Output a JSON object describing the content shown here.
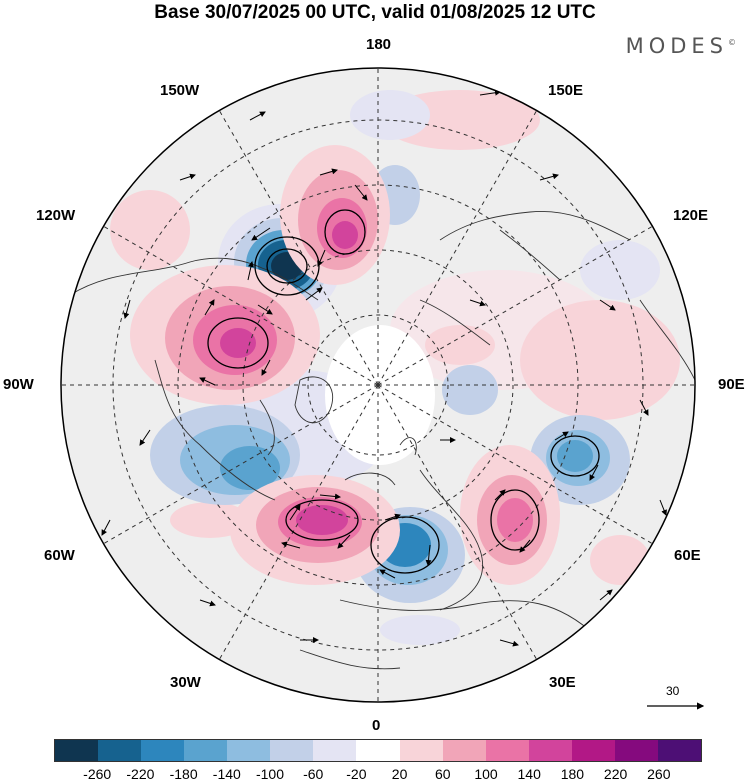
{
  "title": "Base 30/07/2025 00 UTC, valid 01/08/2025 12 UTC",
  "brand": "MODES",
  "brand_mark": "©",
  "longitude_labels": {
    "top": "180",
    "top_left": "150W",
    "top_right": "150E",
    "upper_left": "120W",
    "upper_right": "120E",
    "left": "90W",
    "right": "90E",
    "lower_left": "60W",
    "lower_right": "60E",
    "bottom_left": "30W",
    "bottom_right": "30E",
    "bottom": "0"
  },
  "reference_vector": {
    "value": "30"
  },
  "colorbar": {
    "ticks": [
      "-260",
      "-220",
      "-180",
      "-140",
      "-100",
      "-60",
      "-20",
      "20",
      "60",
      "100",
      "140",
      "180",
      "220",
      "260"
    ],
    "colors": [
      "#0f3550",
      "#16628f",
      "#2d86bd",
      "#5aa3cf",
      "#8ebde0",
      "#c2d0e8",
      "#e4e4f3",
      "#ffffff",
      "#f8d4d9",
      "#f1a5b8",
      "#ea73a6",
      "#d2449c",
      "#b21886",
      "#850a7e",
      "#4d0f75"
    ]
  }
}
